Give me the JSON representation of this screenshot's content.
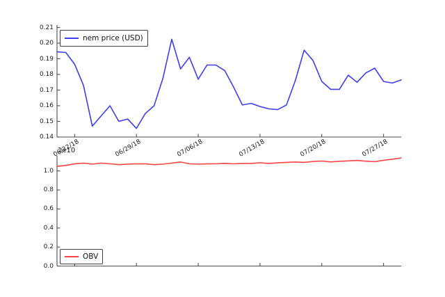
{
  "figure": {
    "background": "#ffffff",
    "axis_color": "#4d4d4d",
    "text_color": "#1a1a1a"
  },
  "top_chart": {
    "legend": {
      "label": "nem price (USD)",
      "position": "upper left"
    },
    "line_color": "#3d3df2"
  },
  "bottom_chart": {
    "legend": {
      "label": "OBV",
      "position": "lower left"
    },
    "offset_label": "1e10",
    "line_color": "#ff4242"
  },
  "chart_data": [
    {
      "type": "line",
      "title": "",
      "xlabel": "",
      "ylabel": "",
      "grid": false,
      "legend_position": "upper left",
      "ylim": [
        0.14,
        0.2115
      ],
      "yticks": [
        "0.21",
        "0.20",
        "0.19",
        "0.18",
        "0.17",
        "0.16",
        "0.15",
        "0.14"
      ],
      "x_ticks": [
        {
          "label": "06/22/18",
          "index": 2
        },
        {
          "label": "06/29/18",
          "index": 9
        },
        {
          "label": "07/06/18",
          "index": 16
        },
        {
          "label": "07/13/18",
          "index": 23
        },
        {
          "label": "07/20/18",
          "index": 30
        },
        {
          "label": "07/27/18",
          "index": 37
        }
      ],
      "series": [
        {
          "name": "nem price (USD)",
          "color": "#3d3df2",
          "values": [
            0.1945,
            0.194,
            0.1865,
            0.173,
            0.147,
            0.1535,
            0.16,
            0.15,
            0.1515,
            0.1455,
            0.155,
            0.16,
            0.1775,
            0.2025,
            0.1835,
            0.191,
            0.177,
            0.186,
            0.186,
            0.1825,
            0.172,
            0.1605,
            0.1615,
            0.1595,
            0.158,
            0.1575,
            0.1605,
            0.176,
            0.1955,
            0.189,
            0.1755,
            0.1705,
            0.1705,
            0.1795,
            0.175,
            0.181,
            0.184,
            0.1755,
            0.1745,
            0.1765
          ]
        }
      ]
    },
    {
      "type": "line",
      "title": "",
      "xlabel": "",
      "ylabel": "",
      "grid": false,
      "legend_position": "lower left",
      "multiplier": "1e10",
      "ylim": [
        0.0,
        1.16
      ],
      "yticks": [
        "1.0",
        "0.8",
        "0.6",
        "0.4",
        "0.2",
        "0.0"
      ],
      "series": [
        {
          "name": "OBV",
          "color": "#ff4242",
          "values": [
            1.048,
            1.058,
            1.074,
            1.082,
            1.071,
            1.082,
            1.075,
            1.066,
            1.071,
            1.074,
            1.074,
            1.066,
            1.071,
            1.082,
            1.094,
            1.075,
            1.071,
            1.074,
            1.075,
            1.079,
            1.075,
            1.078,
            1.079,
            1.085,
            1.079,
            1.085,
            1.09,
            1.094,
            1.09,
            1.099,
            1.104,
            1.095,
            1.101,
            1.106,
            1.11,
            1.103,
            1.097,
            1.112,
            1.123,
            1.137
          ]
        }
      ]
    }
  ]
}
